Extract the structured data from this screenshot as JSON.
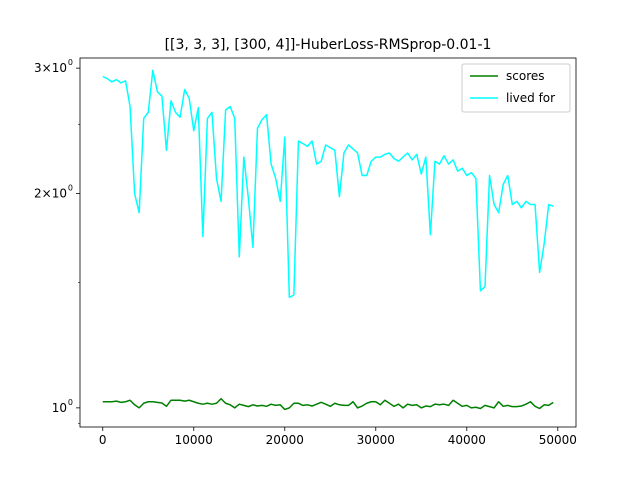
{
  "chart_data": {
    "type": "line",
    "title": "[[3, 3, 3], [300, 4]]-HuberLoss-RMSprop-0.01-1",
    "xlabel": "",
    "ylabel": "",
    "yscale": "log",
    "xlim": [
      -2500,
      52000
    ],
    "ylim": [
      0.94,
      3.1
    ],
    "x_ticks": [
      0,
      10000,
      20000,
      30000,
      40000,
      50000
    ],
    "x_tick_labels": [
      "0",
      "10000",
      "20000",
      "30000",
      "40000",
      "50000"
    ],
    "y_ticks": [
      1,
      2,
      3
    ],
    "y_tick_labels": [
      "10",
      "2×10",
      "3×10"
    ],
    "y_tick_exponent": "0",
    "legend": {
      "placement": "top-right"
    },
    "grid": false,
    "series": [
      {
        "name": "scores",
        "color": "#008000",
        "x": [
          0,
          500,
          1000,
          1500,
          2000,
          2500,
          3000,
          3500,
          4000,
          4500,
          5000,
          5500,
          6000,
          6500,
          7000,
          7500,
          8000,
          8500,
          9000,
          9500,
          10000,
          10500,
          11000,
          11500,
          12000,
          12500,
          13000,
          13500,
          14000,
          14500,
          15000,
          15500,
          16000,
          16500,
          17000,
          17500,
          18000,
          18500,
          19000,
          19500,
          20000,
          20500,
          21000,
          21500,
          22000,
          22500,
          23000,
          23500,
          24000,
          24500,
          25000,
          25500,
          26000,
          26500,
          27000,
          27500,
          28000,
          28500,
          29000,
          29500,
          30000,
          30500,
          31000,
          31500,
          32000,
          32500,
          33000,
          33500,
          34000,
          34500,
          35000,
          35500,
          36000,
          36500,
          37000,
          37500,
          38000,
          38500,
          39000,
          39500,
          40000,
          40500,
          41000,
          41500,
          42000,
          42500,
          43000,
          43500,
          44000,
          44500,
          45000,
          45500,
          46000,
          46500,
          47000,
          47500,
          48000,
          48500,
          49000,
          49500
        ],
        "values": [
          1.02,
          1.02,
          1.02,
          1.022,
          1.018,
          1.02,
          1.025,
          1.01,
          1.0,
          1.015,
          1.02,
          1.02,
          1.018,
          1.016,
          1.005,
          1.025,
          1.025,
          1.025,
          1.022,
          1.025,
          1.02,
          1.015,
          1.012,
          1.015,
          1.012,
          1.015,
          1.03,
          1.015,
          1.01,
          1.0,
          1.012,
          1.008,
          1.004,
          1.01,
          1.006,
          1.008,
          1.005,
          1.012,
          1.008,
          1.01,
          0.995,
          1.0,
          1.015,
          1.015,
          1.008,
          1.01,
          1.006,
          1.012,
          1.018,
          1.012,
          1.005,
          1.015,
          1.01,
          1.008,
          1.008,
          1.02,
          1.0,
          1.006,
          1.015,
          1.02,
          1.02,
          1.01,
          1.025,
          1.015,
          1.005,
          1.012,
          1.0,
          1.012,
          1.008,
          1.01,
          1.0,
          1.006,
          1.004,
          1.012,
          1.01,
          1.012,
          1.008,
          1.025,
          1.015,
          1.005,
          1.008,
          1.0,
          1.002,
          0.998,
          1.008,
          1.004,
          1.0,
          1.02,
          1.005,
          1.008,
          1.004,
          1.004,
          1.006,
          1.012,
          1.02,
          1.005,
          0.998,
          1.01,
          1.008,
          1.018
        ]
      },
      {
        "name": "lived for",
        "color": "#00ffff",
        "x": [
          0,
          500,
          1000,
          1500,
          2000,
          2500,
          3000,
          3500,
          4000,
          4500,
          5000,
          5500,
          6000,
          6500,
          7000,
          7500,
          8000,
          8500,
          9000,
          9500,
          10000,
          10500,
          11000,
          11500,
          12000,
          12500,
          13000,
          13500,
          14000,
          14500,
          15000,
          15500,
          16000,
          16500,
          17000,
          17500,
          18000,
          18500,
          19000,
          19500,
          20000,
          20500,
          21000,
          21500,
          22000,
          22500,
          23000,
          23500,
          24000,
          24500,
          25000,
          25500,
          26000,
          26500,
          27000,
          27500,
          28000,
          28500,
          29000,
          29500,
          30000,
          30500,
          31000,
          31500,
          32000,
          32500,
          33000,
          33500,
          34000,
          34500,
          35000,
          35500,
          36000,
          36500,
          37000,
          37500,
          38000,
          38500,
          39000,
          39500,
          40000,
          40500,
          41000,
          41500,
          42000,
          42500,
          43000,
          43500,
          44000,
          44500,
          45000,
          45500,
          46000,
          46500,
          47000,
          47500,
          48000,
          48500,
          49000,
          49500
        ],
        "values": [
          2.92,
          2.9,
          2.87,
          2.89,
          2.86,
          2.88,
          2.65,
          2.0,
          1.88,
          2.55,
          2.6,
          2.98,
          2.78,
          2.74,
          2.3,
          2.7,
          2.6,
          2.56,
          2.8,
          2.72,
          2.45,
          2.64,
          1.74,
          2.55,
          2.6,
          2.1,
          1.95,
          2.62,
          2.65,
          2.55,
          1.63,
          2.25,
          1.97,
          1.68,
          2.47,
          2.54,
          2.58,
          2.2,
          2.1,
          1.95,
          2.4,
          1.43,
          1.44,
          2.37,
          2.35,
          2.33,
          2.37,
          2.2,
          2.22,
          2.34,
          2.32,
          2.3,
          1.98,
          2.28,
          2.34,
          2.31,
          2.28,
          2.12,
          2.12,
          2.22,
          2.25,
          2.25,
          2.27,
          2.28,
          2.24,
          2.22,
          2.25,
          2.28,
          2.23,
          2.27,
          2.13,
          2.25,
          1.75,
          2.22,
          2.2,
          2.26,
          2.2,
          2.23,
          2.15,
          2.17,
          2.12,
          2.14,
          2.1,
          1.46,
          1.48,
          2.12,
          1.93,
          1.88,
          2.06,
          2.12,
          1.93,
          1.95,
          1.91,
          1.95,
          1.93,
          1.93,
          1.55,
          1.7,
          1.93,
          1.92
        ]
      }
    ]
  }
}
